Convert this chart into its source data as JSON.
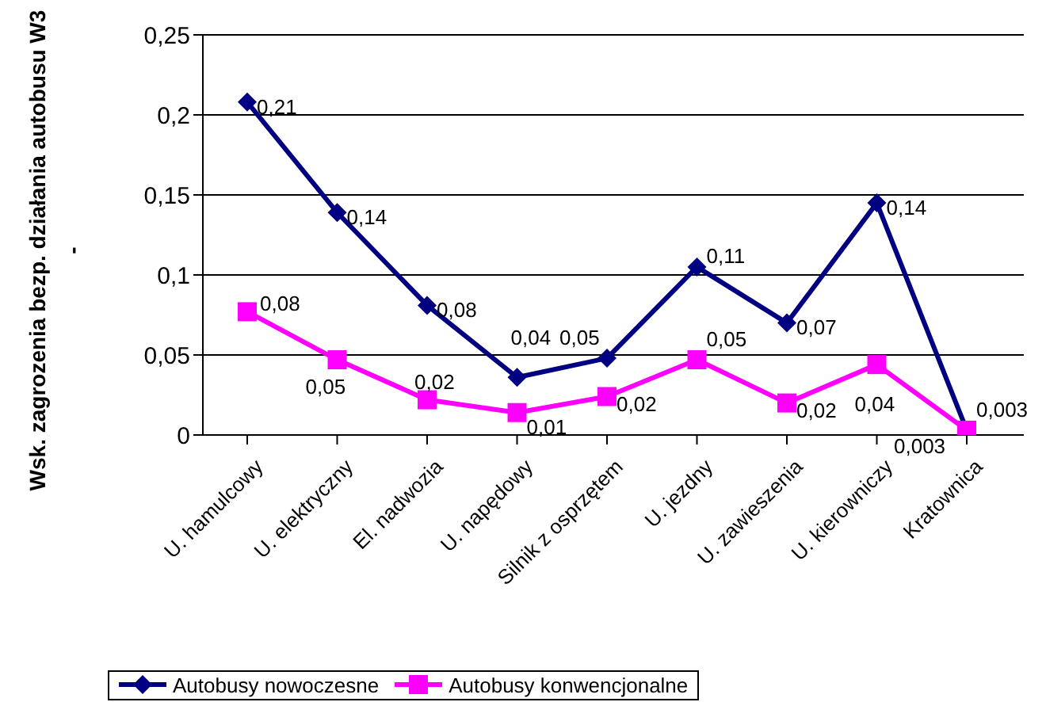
{
  "chart_data": {
    "type": "line",
    "ylabel": "Wsk. zagrozenia bezp. działania autobusu W3\n-",
    "categories": [
      "U. hamulcowy",
      "U. elektryczny",
      "El. nadwozia",
      "U. napędowy",
      "Silnik z osprzętem",
      "U. jezdny",
      "U. zawieszenia",
      "U. kierowniczy",
      "Kratownica"
    ],
    "series": [
      {
        "name": "Autobusy nowoczesne",
        "color": "#000080",
        "marker": "diamond",
        "values": [
          0.208,
          0.139,
          0.081,
          0.036,
          0.048,
          0.105,
          0.07,
          0.145,
          0.003
        ],
        "value_labels": [
          "0,21",
          "0,14",
          "0,08",
          "0,04",
          "0,05",
          "0,11",
          "0,07",
          "0,14",
          "0,003"
        ]
      },
      {
        "name": "Autobusy konwencjonalne",
        "color": "#ff00ff",
        "marker": "square",
        "values": [
          0.077,
          0.047,
          0.022,
          0.014,
          0.024,
          0.047,
          0.02,
          0.044,
          0.003
        ],
        "value_labels": [
          "0,08",
          "0,05",
          "0,02",
          "0,01",
          "0,02",
          "0,05",
          "0,02",
          "0,04",
          "0,003"
        ]
      }
    ],
    "ylim": [
      0,
      0.25
    ],
    "yticks": [
      {
        "value": 0,
        "label": "0"
      },
      {
        "value": 0.05,
        "label": "0,05"
      },
      {
        "value": 0.1,
        "label": "0,1"
      },
      {
        "value": 0.15,
        "label": "0,15"
      },
      {
        "value": 0.2,
        "label": "0,2"
      },
      {
        "value": 0.25,
        "label": "0,25"
      }
    ],
    "grid": "y",
    "legend": "bottom"
  }
}
